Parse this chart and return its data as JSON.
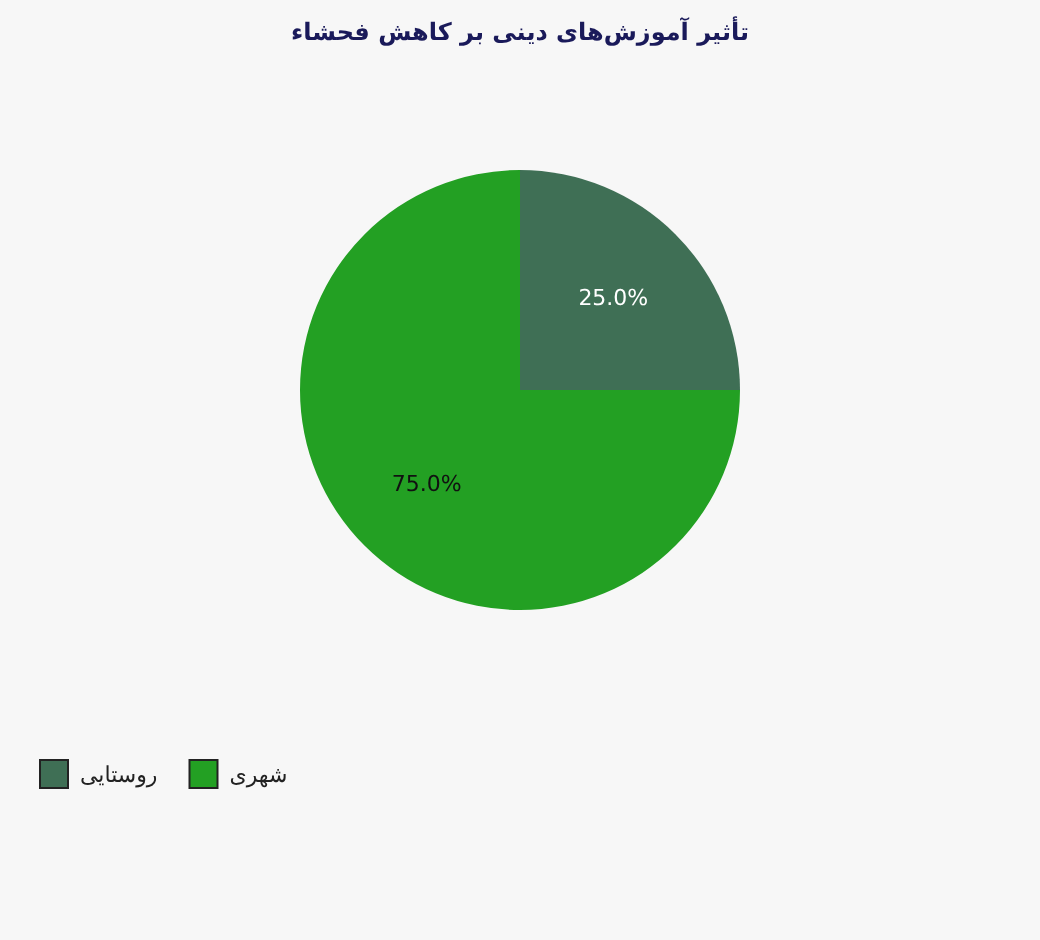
{
  "chart_data": {
    "type": "pie",
    "title": "تأثیر آموزش‌های دینی بر کاهش فحشاء",
    "categories": [
      "روستایی",
      "شهری"
    ],
    "values": [
      25,
      75
    ],
    "colors": [
      "#3f6f55",
      "#23a023"
    ],
    "value_labels": [
      "25.0%",
      "75.0%"
    ],
    "legend": "bottom left"
  }
}
